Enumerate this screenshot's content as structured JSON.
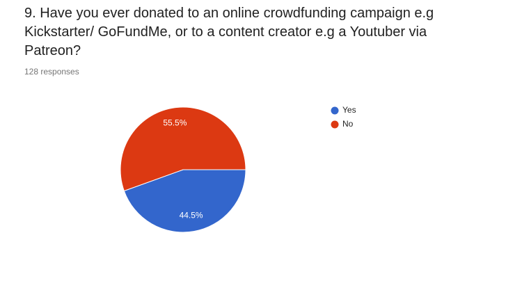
{
  "chart_data": {
    "type": "pie",
    "title": "9. Have you ever donated to an online crowdfunding campaign e.g Kickstarter/ GoFundMe, or to a content creator e.g a Youtuber via Patreon?",
    "subtitle": "128 responses",
    "categories": [
      "Yes",
      "No"
    ],
    "values": [
      44.5,
      55.5
    ],
    "value_labels": [
      "44.5%",
      "55.5%"
    ],
    "colors": [
      "#3366cc",
      "#dc3912"
    ],
    "legend": "right"
  }
}
